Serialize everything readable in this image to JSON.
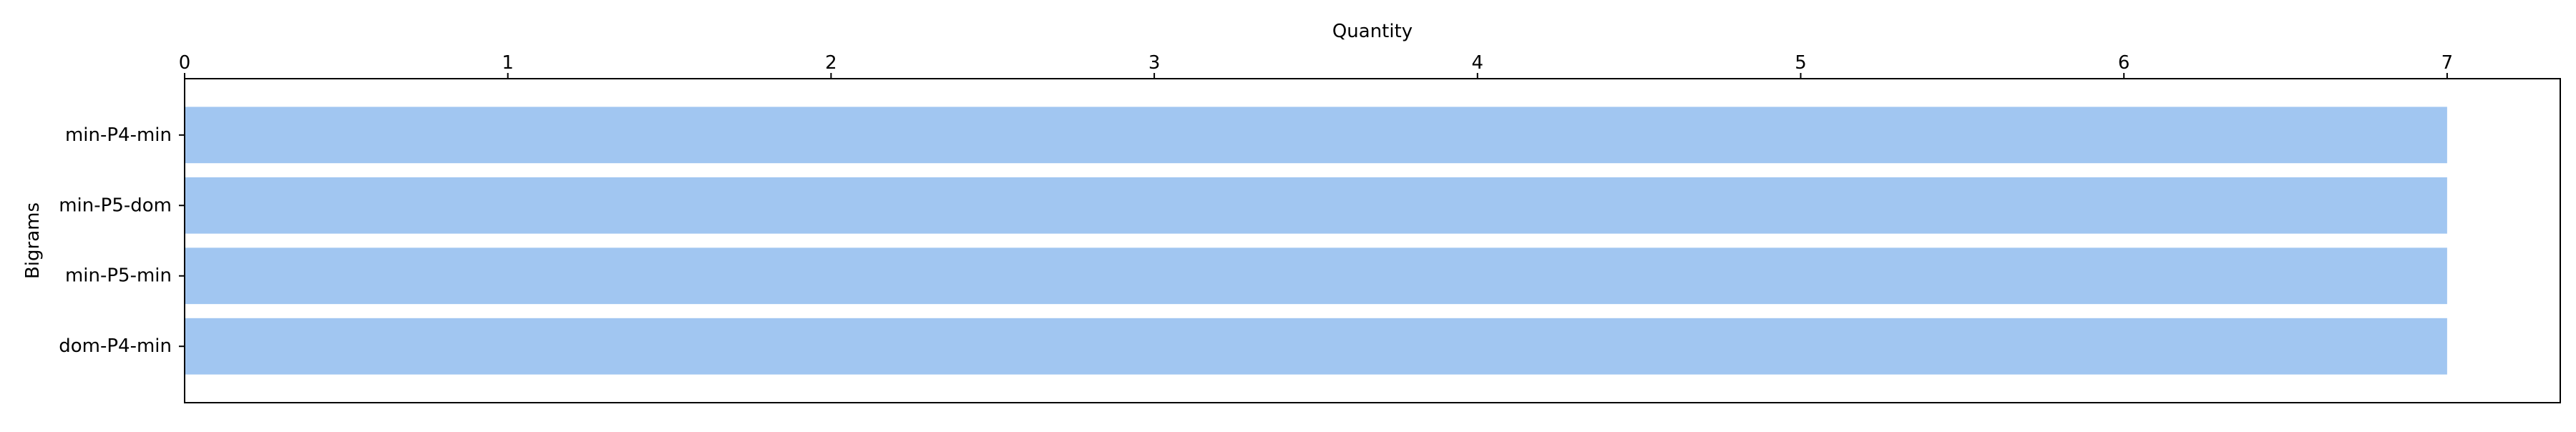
{
  "chart_data": {
    "type": "bar",
    "orientation": "horizontal",
    "categories": [
      "min-P4-min",
      "min-P5-dom",
      "min-P5-min",
      "dom-P4-min"
    ],
    "values": [
      7,
      7,
      7,
      7
    ],
    "xlabel": "Quantity",
    "ylabel": "Bigrams",
    "xlim": [
      0,
      7.35
    ],
    "xticks": [
      0,
      1,
      2,
      3,
      4,
      5,
      6,
      7
    ],
    "x_axis_position": "top",
    "grid": false,
    "legend": "none",
    "bar_color": "#a1c6f1"
  }
}
